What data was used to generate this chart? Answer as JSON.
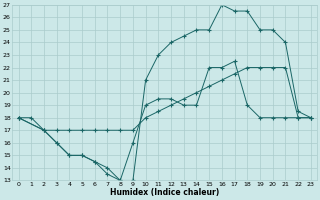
{
  "bg_color": "#cce8e8",
  "grid_color": "#aacccc",
  "line_color": "#1a6666",
  "xlim": [
    -0.5,
    23.5
  ],
  "ylim": [
    13,
    27
  ],
  "xticks": [
    0,
    1,
    2,
    3,
    4,
    5,
    6,
    7,
    8,
    9,
    10,
    11,
    12,
    13,
    14,
    15,
    16,
    17,
    18,
    19,
    20,
    21,
    22,
    23
  ],
  "yticks": [
    13,
    14,
    15,
    16,
    17,
    18,
    19,
    20,
    21,
    22,
    23,
    24,
    25,
    26,
    27
  ],
  "xlabel": "Humidex (Indice chaleur)",
  "line1_x": [
    0,
    1,
    2,
    3,
    4,
    5,
    6,
    7,
    8,
    9,
    10,
    11,
    12,
    13,
    14,
    15,
    16,
    17,
    18,
    19,
    20,
    21,
    22,
    23
  ],
  "line1_y": [
    18,
    18,
    17,
    16,
    15,
    15,
    14.5,
    13.5,
    13,
    16,
    19,
    19.5,
    19.5,
    19,
    19,
    22,
    22,
    22.5,
    19,
    18,
    18,
    18,
    18,
    18
  ],
  "line2_x": [
    0,
    2,
    3,
    4,
    5,
    6,
    7,
    8,
    9,
    10,
    11,
    12,
    13,
    14,
    15,
    16,
    17,
    18,
    19,
    20,
    21,
    22,
    23
  ],
  "line2_y": [
    18,
    17,
    17,
    17,
    17,
    17,
    17,
    17,
    17,
    18,
    18.5,
    19,
    19.5,
    20,
    20.5,
    21,
    21.5,
    22,
    22,
    22,
    22,
    18,
    18
  ],
  "line3_x": [
    0,
    2,
    3,
    4,
    5,
    6,
    7,
    8,
    9,
    10,
    11,
    12,
    13,
    14,
    15,
    16,
    17,
    18,
    19,
    20,
    21,
    22,
    23
  ],
  "line3_y": [
    18,
    17,
    16,
    15,
    15,
    14.5,
    14,
    13,
    13,
    21,
    23,
    24,
    24.5,
    25,
    25,
    27,
    26.5,
    26.5,
    25,
    25,
    24,
    18.5,
    18
  ]
}
